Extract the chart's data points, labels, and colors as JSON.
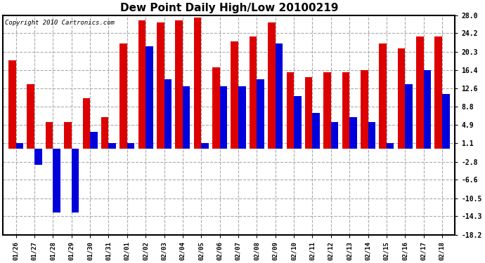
{
  "title": "Dew Point Daily High/Low 20100219",
  "copyright": "Copyright 2010 Cartronics.com",
  "dates": [
    "01/26",
    "01/27",
    "01/28",
    "01/29",
    "01/30",
    "01/31",
    "02/01",
    "02/02",
    "02/03",
    "02/04",
    "02/05",
    "02/06",
    "02/07",
    "02/08",
    "02/09",
    "02/10",
    "02/11",
    "02/12",
    "02/13",
    "02/14",
    "02/15",
    "02/16",
    "02/17",
    "02/18"
  ],
  "highs": [
    18.5,
    13.5,
    5.5,
    5.5,
    10.5,
    6.5,
    22.0,
    27.0,
    26.5,
    27.0,
    27.5,
    17.0,
    22.5,
    23.5,
    26.5,
    16.0,
    15.0,
    16.0,
    16.0,
    16.5,
    22.0,
    21.0,
    23.5,
    23.5
  ],
  "lows": [
    1.1,
    -3.5,
    -13.5,
    -13.5,
    3.5,
    1.1,
    1.1,
    21.5,
    14.5,
    13.0,
    1.1,
    13.0,
    13.0,
    14.5,
    22.0,
    11.0,
    7.5,
    5.5,
    6.5,
    5.5,
    1.1,
    13.5,
    16.5,
    11.5
  ],
  "high_color": "#dd0000",
  "low_color": "#0000dd",
  "bg_color": "#ffffff",
  "grid_color": "#aaaaaa",
  "yticks": [
    28.0,
    24.2,
    20.3,
    16.4,
    12.6,
    8.8,
    4.9,
    1.1,
    -2.8,
    -6.6,
    -10.5,
    -14.3,
    -18.2
  ],
  "ylim": [
    -18.2,
    28.0
  ],
  "title_fontsize": 11,
  "bar_width": 0.4,
  "figwidth": 6.9,
  "figheight": 3.75,
  "dpi": 100
}
